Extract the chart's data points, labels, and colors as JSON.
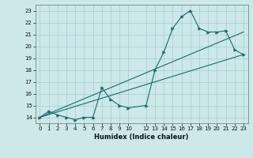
{
  "xlabel": "Humidex (Indice chaleur)",
  "bg_color": "#cce8e8",
  "line_color": "#1a6b6b",
  "grid_color": "#aacece",
  "xlim": [
    -0.5,
    23.5
  ],
  "ylim": [
    13.5,
    23.5
  ],
  "xticks": [
    0,
    1,
    2,
    3,
    4,
    5,
    6,
    7,
    8,
    9,
    10,
    12,
    13,
    14,
    15,
    16,
    17,
    18,
    19,
    20,
    21,
    22,
    23
  ],
  "yticks": [
    14,
    15,
    16,
    17,
    18,
    19,
    20,
    21,
    22,
    23
  ],
  "curve1_x": [
    0,
    1,
    2,
    3,
    4,
    5,
    6,
    7,
    8,
    9,
    10,
    12,
    13,
    14,
    15,
    16,
    17,
    18,
    19,
    20,
    21,
    22,
    23
  ],
  "curve1_y": [
    14.0,
    14.5,
    14.2,
    14.0,
    13.8,
    14.0,
    14.0,
    16.5,
    15.5,
    15.0,
    14.8,
    15.0,
    18.0,
    19.5,
    21.5,
    22.5,
    23.0,
    21.5,
    21.2,
    21.2,
    21.3,
    19.7,
    19.3
  ],
  "line2_x": [
    0,
    23
  ],
  "line2_y": [
    14.0,
    21.2
  ],
  "line3_x": [
    0,
    23
  ],
  "line3_y": [
    14.0,
    19.3
  ]
}
